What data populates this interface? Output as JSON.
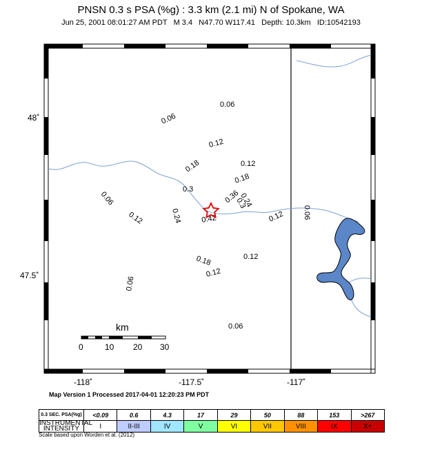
{
  "header": {
    "title": "PNSN 0.3 s PSA (%g) : 3.3 km (2.1 mi) N of Spokane, WA",
    "subtitle": "Jun 25, 2001 08:01:27 AM PDT   M 3.4   N47.70 W117.41   Depth: 10.3km   ID:10542193"
  },
  "map": {
    "lat_labels": [
      "48˚",
      "47.5˚"
    ],
    "lon_labels": [
      "-118˚",
      "-117.5˚",
      "-117˚"
    ],
    "contour_labels": [
      "0.06",
      "0.06",
      "0.12",
      "0.12",
      "0.18",
      "0.18",
      "0.3",
      "0.24",
      "0.3",
      "0.36",
      "0.42",
      "0.06",
      "0.12",
      "0.24",
      "0.12",
      "0.06",
      "0.18",
      "0.12",
      "0.12",
      "0.06",
      "0.06"
    ],
    "scale_bar": {
      "unit": "km",
      "ticks": [
        "0",
        "10",
        "20",
        "30"
      ]
    },
    "epicenter_icon": "star-icon",
    "colors": {
      "water": "#5b86c8",
      "river": "#7aa0d4",
      "epicenter": "#e00000"
    }
  },
  "footer": {
    "processed": "Map Version 1 Processed 2017-04-01 12:20:23 PM PDT",
    "scale_note": "Scale based upon Worden et al. (2012)"
  },
  "legend": {
    "psa_header": "0.3 SEC. PSA(%g)",
    "intensity_header": "INSTRUMENTAL INTENSITY",
    "psa_values": [
      "<0.09",
      "0.6",
      "4.3",
      "17",
      "29",
      "50",
      "88",
      "153",
      ">267"
    ],
    "intensities": [
      "I",
      "II-III",
      "IV",
      "V",
      "VI",
      "VII",
      "VIII",
      "IX",
      "X+"
    ],
    "colors": [
      "#ffffff",
      "#bfccff",
      "#a0e6ff",
      "#80ffa0",
      "#ffff00",
      "#ffc800",
      "#ff9100",
      "#ff0000",
      "#c80000"
    ]
  }
}
